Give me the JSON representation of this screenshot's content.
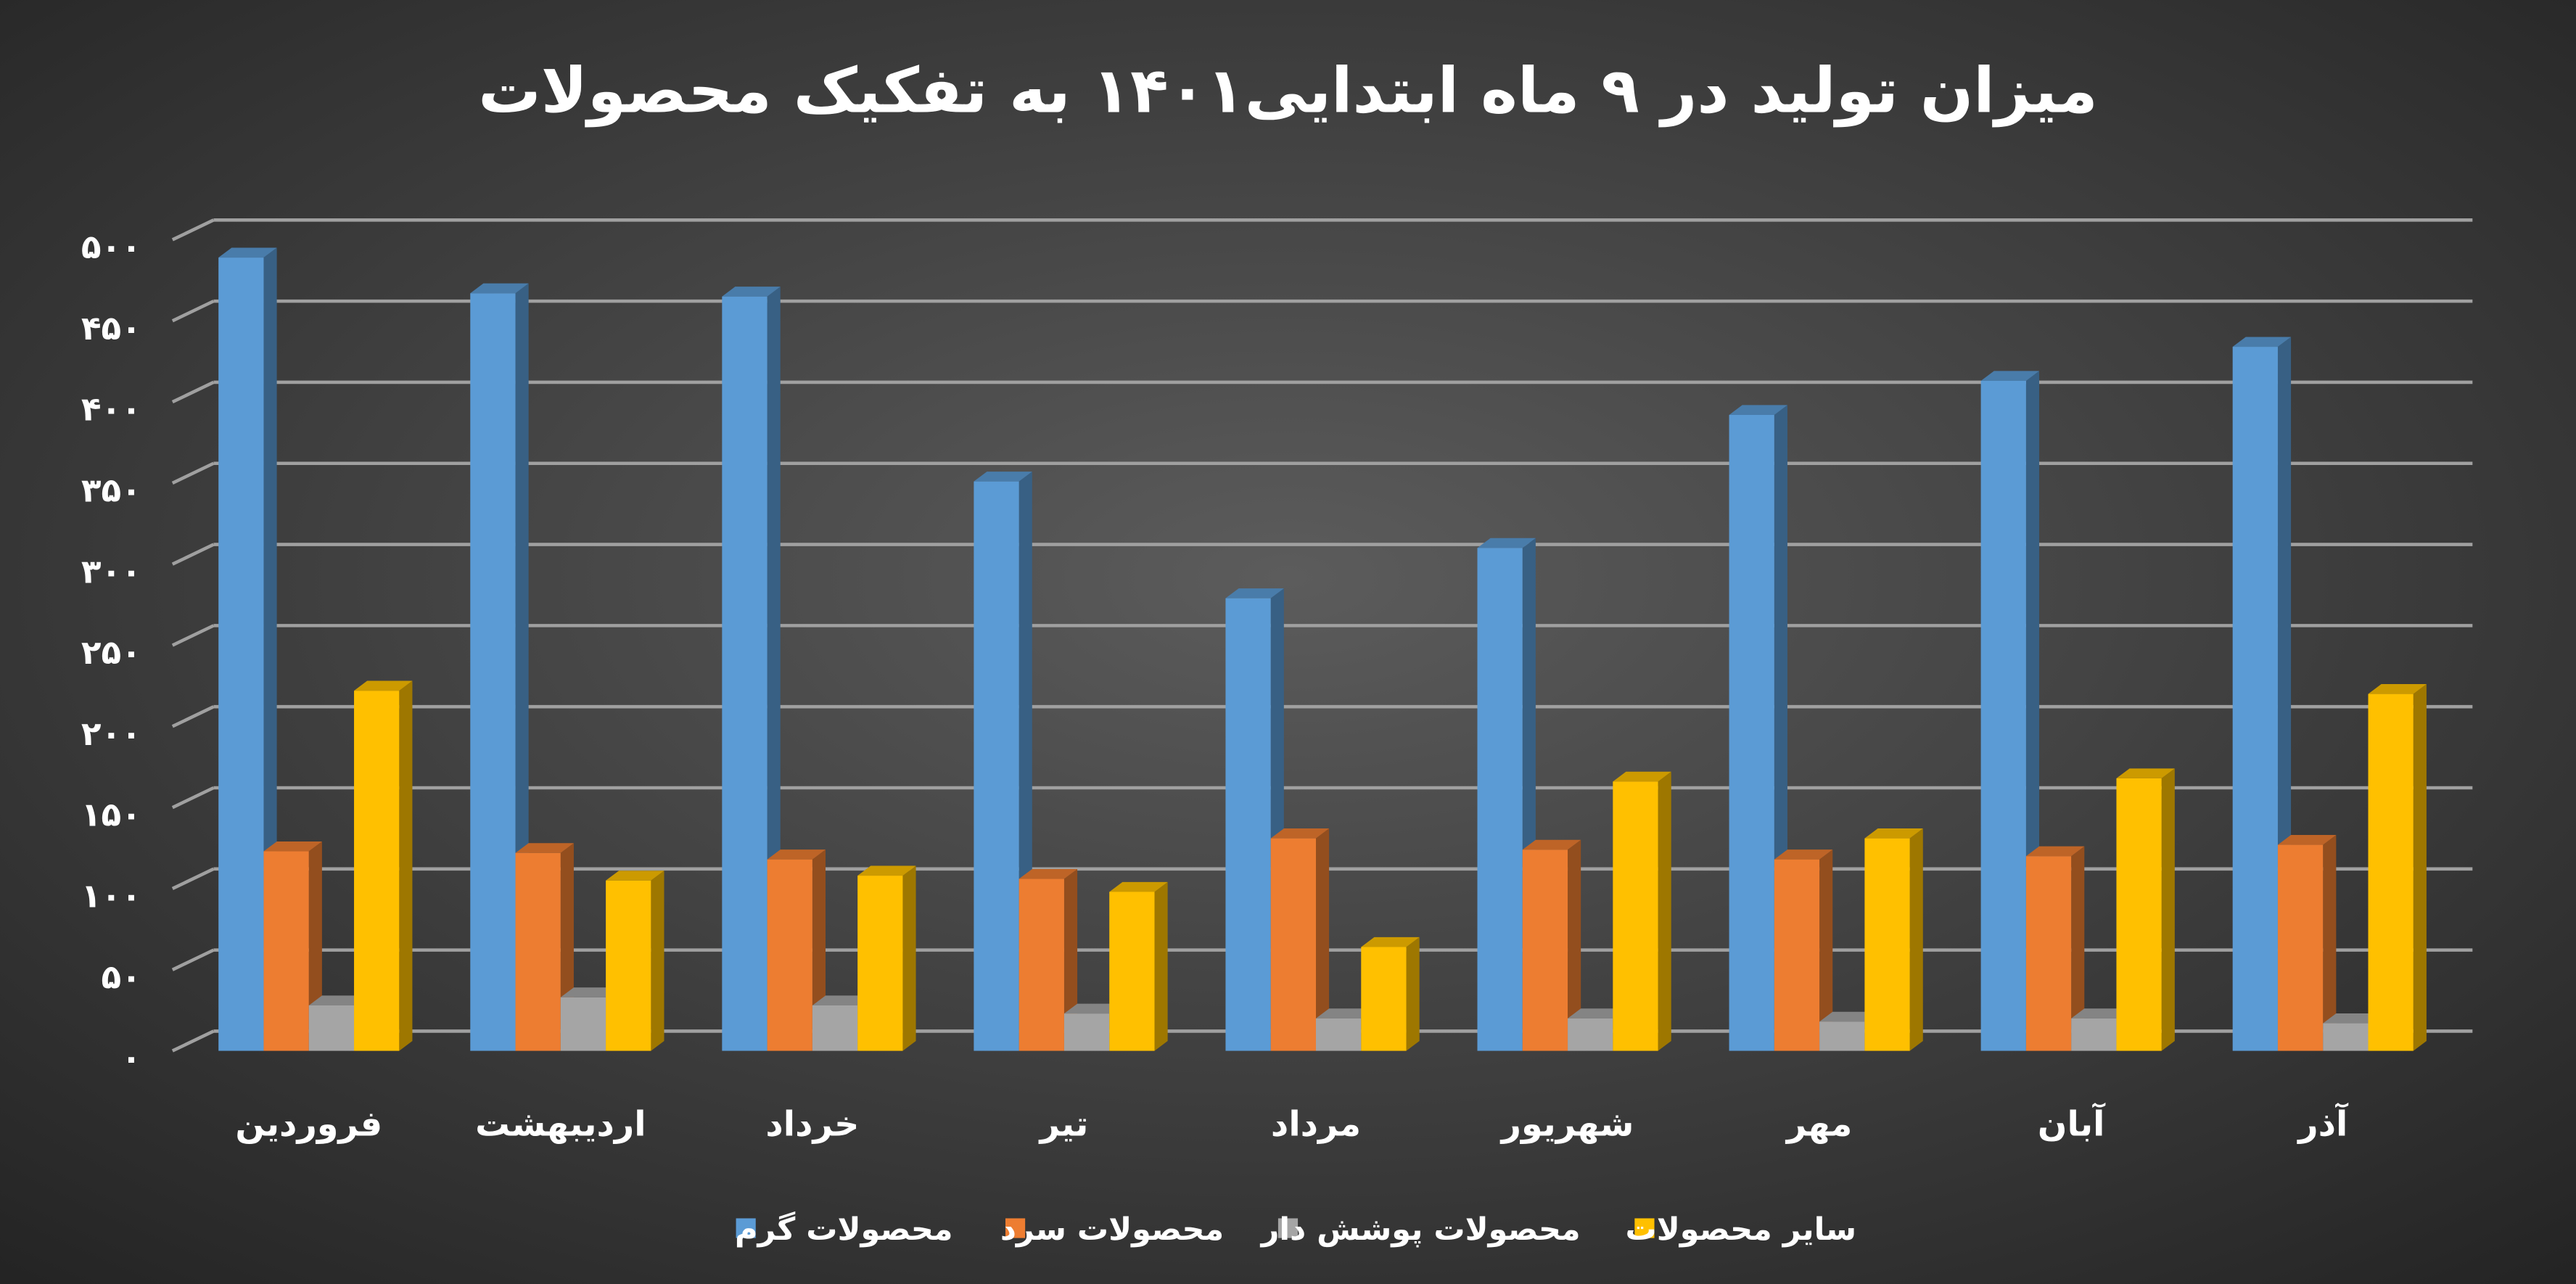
{
  "chart_data": {
    "type": "bar3d",
    "title": "میزان تولید در ۹ ماه ابتدایی۱۴۰۱ به تفکیک محصولات",
    "categories": [
      "فروردین",
      "اردیبهشت",
      "خرداد",
      "تیر",
      "مرداد",
      "شهریور",
      "مهر",
      "آبان",
      "آذر"
    ],
    "series": [
      {
        "name": "محصولات گرم",
        "color": "#5b9bd5",
        "values": [
          489,
          467,
          465,
          351,
          279,
          310,
          392,
          413,
          434
        ]
      },
      {
        "name": "محصولات سرد",
        "color": "#ed7d31",
        "values": [
          123,
          122,
          118,
          106,
          131,
          124,
          118,
          120,
          127
        ]
      },
      {
        "name": "محصولات پوشش دار",
        "color": "#a5a5a5",
        "values": [
          28,
          33,
          28,
          23,
          20,
          20,
          18,
          20,
          17
        ]
      },
      {
        "name": "سایر محصولات",
        "color": "#ffc000",
        "values": [
          222,
          105,
          108,
          98,
          64,
          166,
          131,
          168,
          220
        ]
      }
    ],
    "ylim": [
      0,
      500
    ],
    "yticks": [
      {
        "value": 0,
        "label": "۰"
      },
      {
        "value": 50,
        "label": "۵۰"
      },
      {
        "value": 100,
        "label": "۱۰۰"
      },
      {
        "value": 150,
        "label": "۱۵۰"
      },
      {
        "value": 200,
        "label": "۲۰۰"
      },
      {
        "value": 250,
        "label": "۲۵۰"
      },
      {
        "value": 300,
        "label": "۳۰۰"
      },
      {
        "value": 350,
        "label": "۳۵۰"
      },
      {
        "value": 400,
        "label": "۴۰۰"
      },
      {
        "value": 450,
        "label": "۴۵۰"
      },
      {
        "value": 500,
        "label": "۵۰۰"
      }
    ],
    "grid": true,
    "legend": "bottom"
  }
}
